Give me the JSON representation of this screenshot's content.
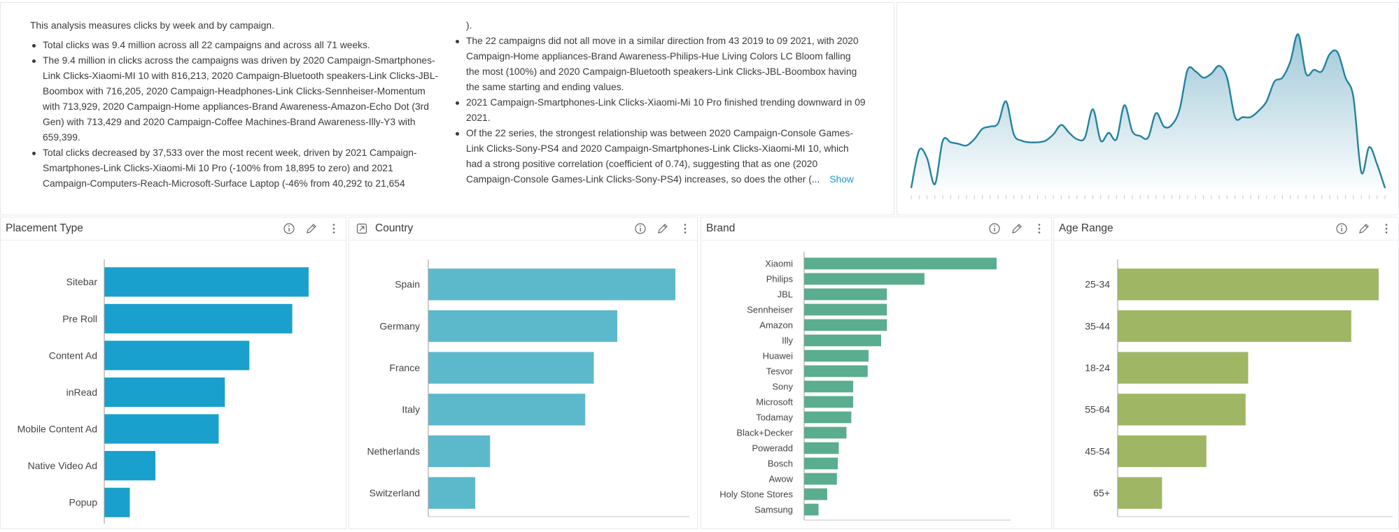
{
  "narrative": {
    "left": {
      "intro": "This analysis measures clicks by week and by campaign.",
      "bullets": [
        "Total clicks was 9.4 million across all 22 campaigns and across all 71 weeks.",
        "The 9.4 million in clicks across the campaigns was driven by 2020 Campaign-Smartphones-Link Clicks-Xiaomi-MI 10 with 816,213, 2020 Campaign-Bluetooth speakers-Link Clicks-JBL-Boombox with 716,205, 2020 Campaign-Headphones-Link Clicks-Sennheiser-Momentum with 713,929, 2020 Campaign-Home appliances-Brand Awareness-Amazon-Echo Dot (3rd Gen) with 713,429 and 2020 Campaign-Coffee Machines-Brand Awareness-Illy-Y3 with 659,399.",
        "Total clicks decreased by 37,533 over the most recent week, driven by 2021 Campaign-Smartphones-Link Clicks-Xiaomi-Mi 10 Pro (-100% from 18,895 to zero) and 2021 Campaign-Computers-Reach-Microsoft-Surface Laptop (-46% from 40,292 to 21,654"
      ]
    },
    "right": {
      "continuation": ").",
      "bullets": [
        "The 22 campaigns did not all move in a similar direction from 43 2019 to 09 2021, with 2020 Campaign-Home appliances-Brand Awareness-Philips-Hue Living Colors LC Bloom falling the most (100%) and 2020 Campaign-Bluetooth speakers-Link Clicks-JBL-Boombox having the same starting and ending values.",
        "2021 Campaign-Smartphones-Link Clicks-Xiaomi-Mi 10 Pro finished trending downward in 09 2021.",
        "Of the 22 series, the strongest relationship was between 2020 Campaign-Console Games-Link Clicks-Sony-PS4 and 2020 Campaign-Smartphones-Link Clicks-Xiaomi-MI 10, which had a strong positive correlation (coefficient of 0.74), suggesting that as one (2020 Campaign-Console Games-Link Clicks-Sony-PS4) increases, so does the other (..."
      ],
      "show_label": "Show"
    }
  },
  "sparkline": {
    "values": [
      0,
      48,
      38,
      5,
      60,
      58,
      56,
      54,
      62,
      75,
      78,
      82,
      110,
      68,
      60,
      58,
      58,
      60,
      68,
      80,
      70,
      62,
      64,
      100,
      60,
      70,
      62,
      105,
      72,
      66,
      64,
      95,
      78,
      80,
      100,
      150,
      148,
      140,
      145,
      155,
      140,
      90,
      90,
      90,
      98,
      110,
      135,
      140,
      160,
      195,
      145,
      150,
      148,
      170,
      172,
      140,
      115,
      20,
      52,
      30,
      0
    ]
  },
  "cards": [
    {
      "title": "Placement Type",
      "color": "#1aa0cc",
      "chart_data": {
        "type": "bar",
        "orientation": "horizontal",
        "categories": [
          "Sitebar",
          "Pre Roll",
          "Content Ad",
          "inRead",
          "Mobile Content Ad",
          "Native Video Ad",
          "Popup"
        ],
        "values": [
          100,
          92,
          71,
          59,
          56,
          25,
          12.5
        ]
      }
    },
    {
      "title": "Country",
      "has_title_icon": true,
      "color": "#5cb9cb",
      "chart_data": {
        "type": "bar",
        "orientation": "horizontal",
        "categories": [
          "Spain",
          "Germany",
          "France",
          "Italy",
          "Netherlands",
          "Switzerland"
        ],
        "values": [
          100,
          76.5,
          67,
          63.5,
          25,
          19
        ]
      }
    },
    {
      "title": "Brand",
      "color": "#5aad8e",
      "chart_data": {
        "type": "bar",
        "orientation": "horizontal",
        "categories": [
          "Xiaomi",
          "Philips",
          "JBL",
          "Sennheiser",
          "Amazon",
          "Illy",
          "Huawei",
          "Tesvor",
          "Sony",
          "Microsoft",
          "Todamay",
          "Black+Decker",
          "Poweradd",
          "Bosch",
          "Awow",
          "Holy Stone Stores",
          "Samsung"
        ],
        "values": [
          100,
          62.5,
          43,
          43,
          43,
          40,
          33.5,
          33,
          25.5,
          25.5,
          24.5,
          22,
          18,
          17.5,
          17,
          12,
          7.5
        ]
      }
    },
    {
      "title": "Age Range",
      "color": "#9fb764",
      "chart_data": {
        "type": "bar",
        "orientation": "horizontal",
        "categories": [
          "25-34",
          "35-44",
          "18-24",
          "55-64",
          "45-54",
          "65+"
        ],
        "values": [
          100,
          89.5,
          50,
          49,
          34,
          17
        ]
      }
    }
  ]
}
